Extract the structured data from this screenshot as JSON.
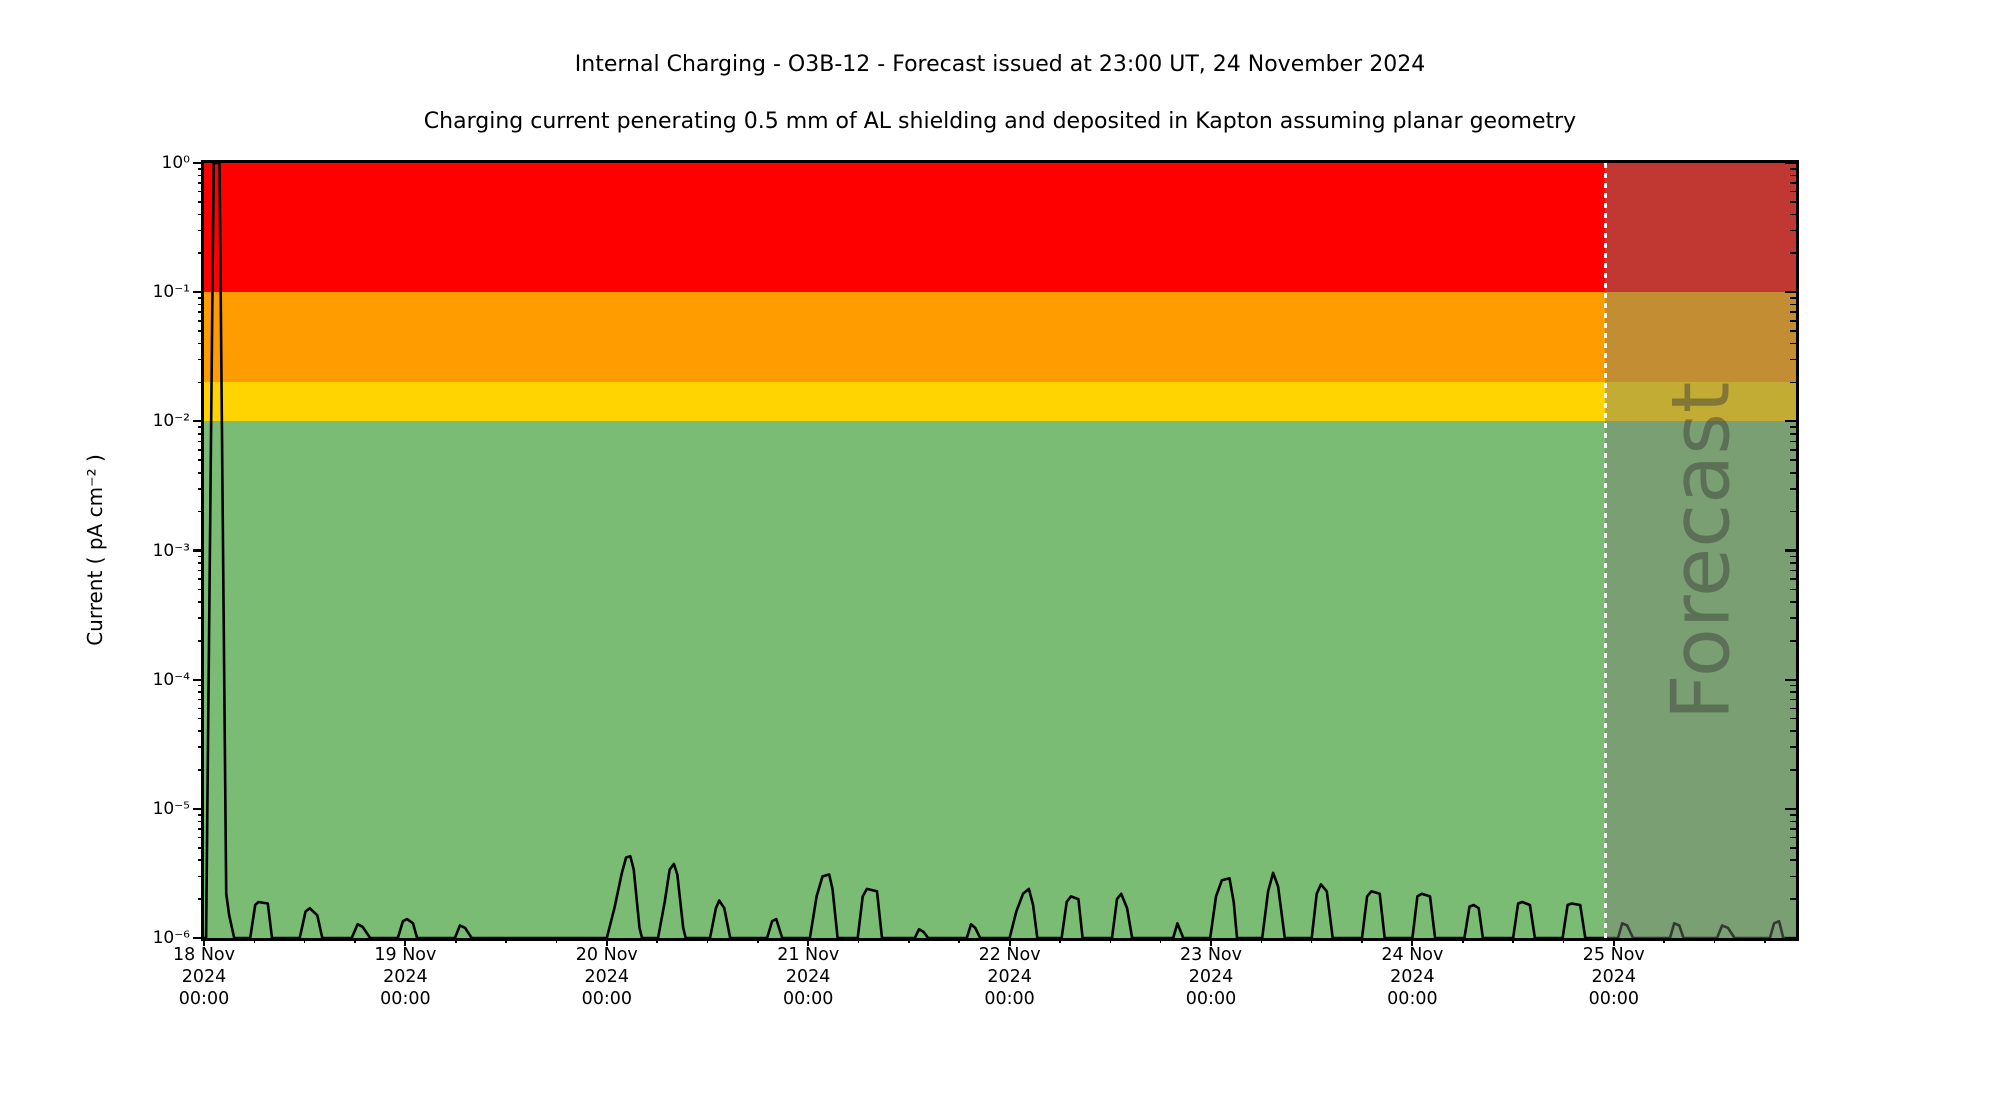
{
  "header": {
    "title": "Internal Charging - O3B-12 - Forecast issued at 23:00 UT, 24 November 2024",
    "subtitle": "Charging current penerating 0.5 mm of AL shielding and deposited in Kapton assuming planar geometry"
  },
  "chart_data": {
    "type": "line",
    "title": "Internal Charging - O3B-12 - Forecast issued at 23:00 UT, 24 November 2024",
    "subtitle": "Charging current penerating 0.5 mm of AL shielding and deposited in Kapton assuming planar geometry",
    "xlabel": "",
    "ylabel": "Current ( pA cm⁻² )",
    "yscale": "log",
    "ylim": [
      1e-06,
      1
    ],
    "grid": false,
    "x_axis_hours_range": [
      0,
      190
    ],
    "x_tick_hours": [
      0,
      24,
      48,
      72,
      96,
      120,
      144,
      168
    ],
    "x_tick_labels": [
      "18 Nov\n2024\n00:00",
      "19 Nov\n2024\n00:00",
      "20 Nov\n2024\n00:00",
      "21 Nov\n2024\n00:00",
      "22 Nov\n2024\n00:00",
      "23 Nov\n2024\n00:00",
      "24 Nov\n2024\n00:00",
      "25 Nov\n2024\n00:00"
    ],
    "y_tick_values": [
      1,
      0.1,
      0.01,
      0.001,
      0.0001,
      1e-05,
      1e-06
    ],
    "y_tick_labels": [
      "10⁰",
      "10⁻¹",
      "10⁻²",
      "10⁻³",
      "10⁻⁴",
      "10⁻⁵",
      "10⁻⁶"
    ],
    "hazard_bands": [
      {
        "name": "red",
        "from": 0.1,
        "to": 1.0,
        "color": "#fe0000"
      },
      {
        "name": "orange",
        "from": 0.02,
        "to": 0.1,
        "color": "#ff9c00"
      },
      {
        "name": "yellow",
        "from": 0.01,
        "to": 0.02,
        "color": "#ffd400"
      },
      {
        "name": "green",
        "from": 1e-06,
        "to": 0.01,
        "color": "#7abc74"
      }
    ],
    "forecast": {
      "label": "Forecast",
      "start_hours": 167,
      "overlay_color": "rgba(120,124,114,0.45)",
      "label_color": "rgba(55,55,55,0.45)",
      "divider_color": "#ffffff"
    },
    "series": [
      {
        "name": "charging-current",
        "color": "#000000",
        "points_hours_pAcm2": [
          [
            0,
            1e-06
          ],
          [
            0.25,
            1e-06
          ],
          [
            1.15,
            1.0
          ],
          [
            1.85,
            1.0
          ],
          [
            2.65,
            2.2e-06
          ],
          [
            3.0,
            1.5e-06
          ],
          [
            3.6,
            1e-06
          ],
          [
            5.5,
            1e-06
          ],
          [
            6.1,
            1.8e-06
          ],
          [
            6.5,
            1.9e-06
          ],
          [
            7.6,
            1.85e-06
          ],
          [
            8.1,
            1e-06
          ],
          [
            11.4,
            1e-06
          ],
          [
            12.1,
            1.6e-06
          ],
          [
            12.6,
            1.7e-06
          ],
          [
            13.5,
            1.5e-06
          ],
          [
            14.1,
            1e-06
          ],
          [
            17.6,
            1e-06
          ],
          [
            18.3,
            1.28e-06
          ],
          [
            18.9,
            1.22e-06
          ],
          [
            19.8,
            1e-06
          ],
          [
            23.1,
            1e-06
          ],
          [
            23.7,
            1.35e-06
          ],
          [
            24.2,
            1.4e-06
          ],
          [
            24.9,
            1.3e-06
          ],
          [
            25.4,
            1e-06
          ],
          [
            29.9,
            1e-06
          ],
          [
            30.5,
            1.25e-06
          ],
          [
            31.1,
            1.2e-06
          ],
          [
            31.9,
            1e-06
          ],
          [
            48.0,
            1e-06
          ],
          [
            48.9,
            1.7e-06
          ],
          [
            49.8,
            3.2e-06
          ],
          [
            50.3,
            4.2e-06
          ],
          [
            50.8,
            4.3e-06
          ],
          [
            51.2,
            3.4e-06
          ],
          [
            51.9,
            1.2e-06
          ],
          [
            52.2,
            1e-06
          ],
          [
            54.1,
            1e-06
          ],
          [
            54.9,
            1.9e-06
          ],
          [
            55.5,
            3.4e-06
          ],
          [
            56.0,
            3.75e-06
          ],
          [
            56.4,
            3.1e-06
          ],
          [
            57.1,
            1.2e-06
          ],
          [
            57.4,
            1e-06
          ],
          [
            60.3,
            1e-06
          ],
          [
            61.0,
            1.7e-06
          ],
          [
            61.4,
            1.95e-06
          ],
          [
            62.0,
            1.7e-06
          ],
          [
            62.7,
            1e-06
          ],
          [
            67.1,
            1e-06
          ],
          [
            67.7,
            1.35e-06
          ],
          [
            68.2,
            1.4e-06
          ],
          [
            68.9,
            1e-06
          ],
          [
            72.2,
            1e-06
          ],
          [
            73.0,
            2.1e-06
          ],
          [
            73.7,
            3e-06
          ],
          [
            74.5,
            3.1e-06
          ],
          [
            74.9,
            2.4e-06
          ],
          [
            75.5,
            1e-06
          ],
          [
            77.9,
            1e-06
          ],
          [
            78.5,
            2.1e-06
          ],
          [
            79.0,
            2.4e-06
          ],
          [
            80.2,
            2.3e-06
          ],
          [
            80.8,
            1e-06
          ],
          [
            84.7,
            1e-06
          ],
          [
            85.2,
            1.17e-06
          ],
          [
            85.7,
            1.12e-06
          ],
          [
            86.3,
            1e-06
          ],
          [
            90.9,
            1e-06
          ],
          [
            91.4,
            1.28e-06
          ],
          [
            91.9,
            1.2e-06
          ],
          [
            92.5,
            1e-06
          ],
          [
            96.0,
            1e-06
          ],
          [
            96.8,
            1.6e-06
          ],
          [
            97.6,
            2.2e-06
          ],
          [
            98.3,
            2.4e-06
          ],
          [
            98.8,
            1.8e-06
          ],
          [
            99.3,
            1e-06
          ],
          [
            102.2,
            1e-06
          ],
          [
            102.8,
            1.9e-06
          ],
          [
            103.3,
            2.1e-06
          ],
          [
            104.2,
            2e-06
          ],
          [
            104.7,
            1e-06
          ],
          [
            108.2,
            1e-06
          ],
          [
            108.8,
            2e-06
          ],
          [
            109.3,
            2.2e-06
          ],
          [
            110.0,
            1.7e-06
          ],
          [
            110.6,
            1e-06
          ],
          [
            115.5,
            1e-06
          ],
          [
            116.0,
            1.3e-06
          ],
          [
            116.7,
            1e-06
          ],
          [
            119.9,
            1e-06
          ],
          [
            120.6,
            2.1e-06
          ],
          [
            121.3,
            2.8e-06
          ],
          [
            122.2,
            2.9e-06
          ],
          [
            122.7,
            1.9e-06
          ],
          [
            123.1,
            1e-06
          ],
          [
            126.1,
            1e-06
          ],
          [
            126.8,
            2.3e-06
          ],
          [
            127.4,
            3.2e-06
          ],
          [
            128.0,
            2.5e-06
          ],
          [
            128.8,
            1e-06
          ],
          [
            132.0,
            1e-06
          ],
          [
            132.6,
            2.2e-06
          ],
          [
            133.1,
            2.6e-06
          ],
          [
            133.8,
            2.3e-06
          ],
          [
            134.5,
            1e-06
          ],
          [
            138.0,
            1e-06
          ],
          [
            138.6,
            2.1e-06
          ],
          [
            139.1,
            2.3e-06
          ],
          [
            140.1,
            2.2e-06
          ],
          [
            140.7,
            1e-06
          ],
          [
            144.0,
            1e-06
          ],
          [
            144.6,
            2.1e-06
          ],
          [
            145.1,
            2.2e-06
          ],
          [
            146.1,
            2.1e-06
          ],
          [
            146.7,
            1e-06
          ],
          [
            150.2,
            1e-06
          ],
          [
            150.8,
            1.75e-06
          ],
          [
            151.3,
            1.8e-06
          ],
          [
            151.9,
            1.7e-06
          ],
          [
            152.4,
            1e-06
          ],
          [
            156.0,
            1e-06
          ],
          [
            156.6,
            1.85e-06
          ],
          [
            157.1,
            1.9e-06
          ],
          [
            158.0,
            1.8e-06
          ],
          [
            158.6,
            1e-06
          ],
          [
            161.9,
            1e-06
          ],
          [
            162.5,
            1.8e-06
          ],
          [
            163.0,
            1.85e-06
          ],
          [
            164.0,
            1.8e-06
          ],
          [
            164.6,
            1e-06
          ],
          [
            168.5,
            1e-06
          ],
          [
            169.0,
            1.3e-06
          ],
          [
            169.6,
            1.25e-06
          ],
          [
            170.3,
            1e-06
          ],
          [
            174.7,
            1e-06
          ],
          [
            175.2,
            1.3e-06
          ],
          [
            175.8,
            1.25e-06
          ],
          [
            176.3,
            1e-06
          ],
          [
            180.3,
            1e-06
          ],
          [
            180.9,
            1.25e-06
          ],
          [
            181.6,
            1.2e-06
          ],
          [
            182.4,
            1e-06
          ],
          [
            186.6,
            1e-06
          ],
          [
            187.1,
            1.3e-06
          ],
          [
            187.7,
            1.35e-06
          ],
          [
            188.2,
            1e-06
          ],
          [
            190.0,
            1e-06
          ]
        ]
      }
    ]
  }
}
